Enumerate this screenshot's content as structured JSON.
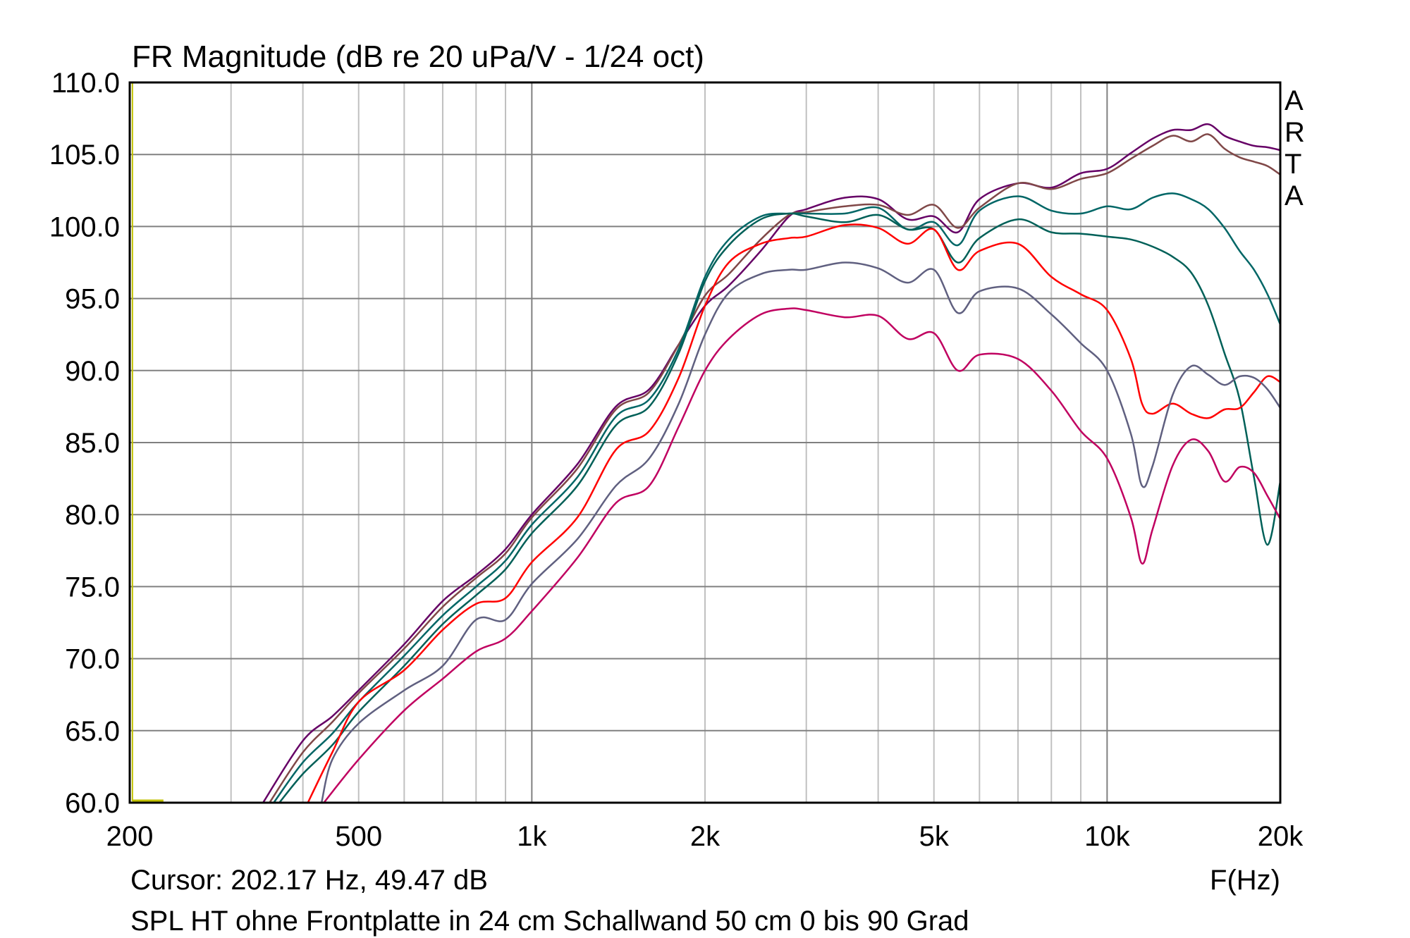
{
  "chart_data": {
    "type": "line",
    "title": "FR Magnitude (dB re 20 uPa/V - 1/24 oct)",
    "xlabel": "F(Hz)",
    "ylabel": "",
    "xscale": "log",
    "xlim": [
      200,
      20000
    ],
    "ylim": [
      60,
      110
    ],
    "grid": true,
    "y_ticks": [
      "110.0",
      "105.0",
      "100.0",
      "95.0",
      "90.0",
      "85.0",
      "80.0",
      "75.0",
      "70.0",
      "65.0",
      "60.0"
    ],
    "y_tick_values": [
      110,
      105,
      100,
      95,
      90,
      85,
      80,
      75,
      70,
      65,
      60
    ],
    "x_ticks": [
      "200",
      "500",
      "1k",
      "2k",
      "5k",
      "10k",
      "20k"
    ],
    "x_tick_values": [
      200,
      500,
      1000,
      2000,
      5000,
      10000,
      20000
    ],
    "watermark": [
      "A",
      "R",
      "T",
      "A"
    ],
    "cursor_text": "Cursor: 202.17 Hz, 49.47 dB",
    "cursor_freq": 202.17,
    "caption": "SPL HT ohne Frontplatte in 24 cm Schallwand 50 cm 0 bis 90 Grad",
    "cursor_color": "#c0c000",
    "series": [
      {
        "name": "curve-1",
        "color": "#660066",
        "points": [
          [
            341,
            60
          ],
          [
            400,
            64.3
          ],
          [
            450,
            66
          ],
          [
            500,
            67.8
          ],
          [
            600,
            71
          ],
          [
            700,
            74
          ],
          [
            800,
            75.8
          ],
          [
            900,
            77.6
          ],
          [
            1000,
            80
          ],
          [
            1200,
            83.5
          ],
          [
            1400,
            87.5
          ],
          [
            1600,
            88.7
          ],
          [
            1800,
            91.8
          ],
          [
            2000,
            94.5
          ],
          [
            2200,
            95.9
          ],
          [
            2500,
            98.3
          ],
          [
            2800,
            100.7
          ],
          [
            3000,
            101.2
          ],
          [
            3500,
            102.0
          ],
          [
            4000,
            101.9
          ],
          [
            4500,
            100.5
          ],
          [
            5000,
            100.7
          ],
          [
            5500,
            99.6
          ],
          [
            6000,
            101.9
          ],
          [
            7000,
            103
          ],
          [
            8000,
            102.7
          ],
          [
            9000,
            103.7
          ],
          [
            10000,
            104
          ],
          [
            11000,
            105.1
          ],
          [
            12000,
            106.1
          ],
          [
            13000,
            106.7
          ],
          [
            14000,
            106.7
          ],
          [
            15000,
            107.1
          ],
          [
            16000,
            106.3
          ],
          [
            17000,
            105.9
          ],
          [
            18000,
            105.6
          ],
          [
            19000,
            105.5
          ],
          [
            20000,
            105.3
          ]
        ]
      },
      {
        "name": "curve-2",
        "color": "#804848",
        "points": [
          [
            350,
            60
          ],
          [
            400,
            63.5
          ],
          [
            450,
            65.6
          ],
          [
            500,
            67.6
          ],
          [
            600,
            70.7
          ],
          [
            700,
            73.6
          ],
          [
            800,
            75.6
          ],
          [
            900,
            77.3
          ],
          [
            1000,
            79.8
          ],
          [
            1200,
            83.2
          ],
          [
            1400,
            87.3
          ],
          [
            1600,
            88.5
          ],
          [
            1800,
            91.8
          ],
          [
            2000,
            95.2
          ],
          [
            2200,
            96.7
          ],
          [
            2500,
            99.1
          ],
          [
            2800,
            100.8
          ],
          [
            3000,
            101.0
          ],
          [
            3500,
            101.4
          ],
          [
            4000,
            101.5
          ],
          [
            4500,
            100.8
          ],
          [
            5000,
            101.5
          ],
          [
            5500,
            99.9
          ],
          [
            6000,
            101.3
          ],
          [
            7000,
            103
          ],
          [
            8000,
            102.6
          ],
          [
            9000,
            103.3
          ],
          [
            10000,
            103.7
          ],
          [
            11000,
            104.7
          ],
          [
            12000,
            105.6
          ],
          [
            13000,
            106.3
          ],
          [
            14000,
            105.9
          ],
          [
            15000,
            106.4
          ],
          [
            16000,
            105.4
          ],
          [
            17000,
            104.8
          ],
          [
            18000,
            104.5
          ],
          [
            19000,
            104.2
          ],
          [
            20000,
            103.6
          ]
        ]
      },
      {
        "name": "curve-3",
        "color": "#006666",
        "points": [
          [
            356,
            60
          ],
          [
            400,
            62.8
          ],
          [
            450,
            64.8
          ],
          [
            500,
            67
          ],
          [
            600,
            70.2
          ],
          [
            700,
            73
          ],
          [
            800,
            75
          ],
          [
            900,
            76.8
          ],
          [
            1000,
            79.3
          ],
          [
            1200,
            82.6
          ],
          [
            1400,
            86.8
          ],
          [
            1600,
            88
          ],
          [
            1800,
            91.5
          ],
          [
            2000,
            96.5
          ],
          [
            2200,
            99.1
          ],
          [
            2500,
            100.7
          ],
          [
            2800,
            100.9
          ],
          [
            3000,
            100.9
          ],
          [
            3500,
            100.9
          ],
          [
            4000,
            101.3
          ],
          [
            4500,
            99.8
          ],
          [
            5000,
            100.3
          ],
          [
            5500,
            98.7
          ],
          [
            6000,
            101.1
          ],
          [
            7000,
            102.1
          ],
          [
            8000,
            101.1
          ],
          [
            9000,
            100.9
          ],
          [
            10000,
            101.4
          ],
          [
            11000,
            101.2
          ],
          [
            12000,
            102.0
          ],
          [
            13000,
            102.3
          ],
          [
            14000,
            101.9
          ],
          [
            15000,
            101.2
          ],
          [
            16000,
            99.9
          ],
          [
            17000,
            98.3
          ],
          [
            18000,
            97
          ],
          [
            19000,
            95.3
          ],
          [
            20000,
            93.2
          ]
        ]
      },
      {
        "name": "curve-4",
        "color": "#006058",
        "points": [
          [
            364,
            60
          ],
          [
            400,
            62
          ],
          [
            450,
            64
          ],
          [
            500,
            66.3
          ],
          [
            600,
            69.5
          ],
          [
            700,
            72.4
          ],
          [
            800,
            74.4
          ],
          [
            900,
            76.2
          ],
          [
            1000,
            78.7
          ],
          [
            1200,
            82
          ],
          [
            1400,
            86.2
          ],
          [
            1600,
            87.5
          ],
          [
            1800,
            91.2
          ],
          [
            2000,
            96.2
          ],
          [
            2200,
            98.7
          ],
          [
            2500,
            100.5
          ],
          [
            2800,
            100.9
          ],
          [
            3000,
            100.7
          ],
          [
            3500,
            100.3
          ],
          [
            4000,
            100.8
          ],
          [
            4500,
            99.8
          ],
          [
            5000,
            99.8
          ],
          [
            5500,
            97.5
          ],
          [
            6000,
            99.2
          ],
          [
            7000,
            100.5
          ],
          [
            8000,
            99.6
          ],
          [
            9000,
            99.5
          ],
          [
            10000,
            99.3
          ],
          [
            11000,
            99.1
          ],
          [
            12000,
            98.6
          ],
          [
            13000,
            97.9
          ],
          [
            14000,
            96.8
          ],
          [
            15000,
            94.5
          ],
          [
            16000,
            91.2
          ],
          [
            17000,
            88
          ],
          [
            18000,
            82.6
          ],
          [
            19000,
            77.9
          ],
          [
            20000,
            82.3
          ]
        ]
      },
      {
        "name": "curve-5",
        "color": "#ff0000",
        "points": [
          [
            408,
            60
          ],
          [
            450,
            63.5
          ],
          [
            500,
            67
          ],
          [
            600,
            69.2
          ],
          [
            700,
            72
          ],
          [
            800,
            73.8
          ],
          [
            900,
            74.2
          ],
          [
            1000,
            76.7
          ],
          [
            1200,
            79.8
          ],
          [
            1400,
            84.5
          ],
          [
            1600,
            85.8
          ],
          [
            1800,
            89.5
          ],
          [
            2000,
            94.5
          ],
          [
            2200,
            97.5
          ],
          [
            2500,
            98.8
          ],
          [
            2800,
            99.2
          ],
          [
            3000,
            99.3
          ],
          [
            3500,
            100.1
          ],
          [
            4000,
            99.9
          ],
          [
            4500,
            98.8
          ],
          [
            5000,
            99.8
          ],
          [
            5500,
            97.0
          ],
          [
            6000,
            98.3
          ],
          [
            7000,
            98.8
          ],
          [
            8000,
            96.5
          ],
          [
            9000,
            95.3
          ],
          [
            10000,
            94.2
          ],
          [
            11000,
            90.8
          ],
          [
            11500,
            87.7
          ],
          [
            12000,
            87
          ],
          [
            13000,
            87.7
          ],
          [
            14000,
            87
          ],
          [
            15000,
            86.7
          ],
          [
            16000,
            87.3
          ],
          [
            17000,
            87.4
          ],
          [
            18000,
            88.5
          ],
          [
            19000,
            89.6
          ],
          [
            20000,
            89.2
          ]
        ]
      },
      {
        "name": "curve-6",
        "color": "#606080",
        "points": [
          [
            431,
            60
          ],
          [
            450,
            63.0
          ],
          [
            500,
            65.5
          ],
          [
            600,
            67.8
          ],
          [
            700,
            69.5
          ],
          [
            800,
            72.7
          ],
          [
            900,
            72.7
          ],
          [
            1000,
            75.2
          ],
          [
            1200,
            78.3
          ],
          [
            1400,
            82
          ],
          [
            1600,
            83.9
          ],
          [
            1800,
            87.7
          ],
          [
            2000,
            92.5
          ],
          [
            2200,
            95.4
          ],
          [
            2500,
            96.7
          ],
          [
            2800,
            97
          ],
          [
            3000,
            97
          ],
          [
            3500,
            97.5
          ],
          [
            4000,
            97.1
          ],
          [
            4500,
            96.1
          ],
          [
            5000,
            97
          ],
          [
            5500,
            94
          ],
          [
            6000,
            95.5
          ],
          [
            7000,
            95.7
          ],
          [
            8000,
            93.9
          ],
          [
            9000,
            91.9
          ],
          [
            10000,
            90
          ],
          [
            11000,
            85.6
          ],
          [
            11500,
            82
          ],
          [
            12000,
            83.4
          ],
          [
            13000,
            88.3
          ],
          [
            14000,
            90.3
          ],
          [
            15000,
            89.7
          ],
          [
            16000,
            89
          ],
          [
            17000,
            89.6
          ],
          [
            18000,
            89.5
          ],
          [
            19000,
            88.7
          ],
          [
            20000,
            87.4
          ]
        ]
      },
      {
        "name": "curve-7",
        "color": "#c00060",
        "points": [
          [
            435,
            60
          ],
          [
            500,
            63
          ],
          [
            600,
            66.4
          ],
          [
            700,
            68.6
          ],
          [
            800,
            70.5
          ],
          [
            900,
            71.4
          ],
          [
            1000,
            73.3
          ],
          [
            1200,
            77
          ],
          [
            1400,
            80.8
          ],
          [
            1600,
            82
          ],
          [
            1800,
            86.1
          ],
          [
            2000,
            90
          ],
          [
            2200,
            92.2
          ],
          [
            2500,
            93.9
          ],
          [
            2800,
            94.3
          ],
          [
            3000,
            94.2
          ],
          [
            3500,
            93.7
          ],
          [
            4000,
            93.8
          ],
          [
            4500,
            92.2
          ],
          [
            5000,
            92.6
          ],
          [
            5500,
            90
          ],
          [
            6000,
            91.1
          ],
          [
            7000,
            90.8
          ],
          [
            8000,
            88.6
          ],
          [
            9000,
            85.8
          ],
          [
            10000,
            83.9
          ],
          [
            11000,
            79.8
          ],
          [
            11500,
            76.6
          ],
          [
            12000,
            79
          ],
          [
            13000,
            83.4
          ],
          [
            14000,
            85.2
          ],
          [
            15000,
            84.4
          ],
          [
            16000,
            82.3
          ],
          [
            17000,
            83.3
          ],
          [
            18000,
            82.9
          ],
          [
            19000,
            81.3
          ],
          [
            20000,
            79.7
          ]
        ]
      }
    ]
  }
}
